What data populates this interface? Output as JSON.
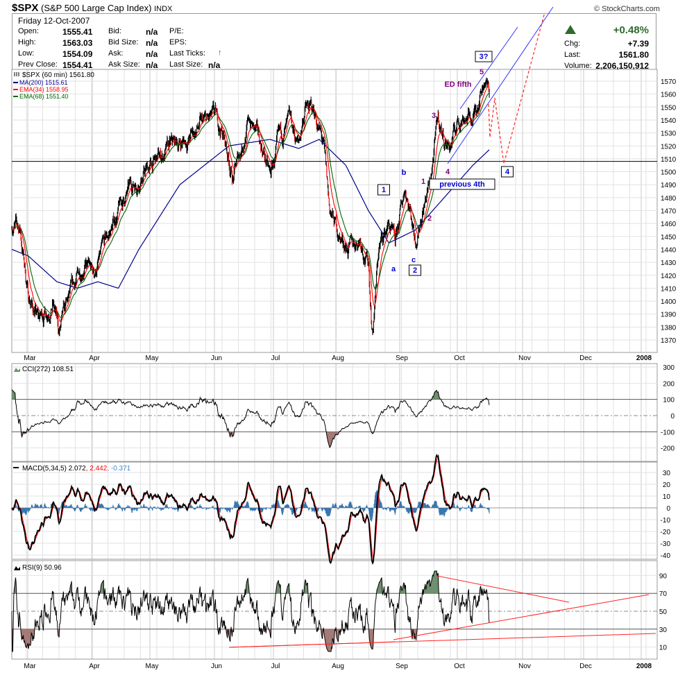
{
  "header": {
    "symbol": "$SPX",
    "name": "(S&P 500 Large Cap Index)",
    "exchange": "INDX",
    "brand": "© StockCharts.com"
  },
  "quote": {
    "date": "Friday  12-Oct-2007",
    "rows": [
      {
        "l1": "Open:",
        "v1": "1555.41",
        "l2": "Bid:",
        "v2": "n/a",
        "l3": "P/E:",
        "v3": ""
      },
      {
        "l1": "High:",
        "v1": "1563.03",
        "l2": "Bid Size:",
        "v2": "n/a",
        "l3": "EPS:",
        "v3": ""
      },
      {
        "l1": "Low:",
        "v1": "1554.09",
        "l2": "Ask:",
        "v2": "n/a",
        "l3": "Last Ticks:",
        "v3": ""
      },
      {
        "l1": "Prev Close:",
        "v1": "1554.41",
        "l2": "Ask Size:",
        "v2": "n/a",
        "l3": "Last Size:",
        "v3": "n/a"
      }
    ],
    "pct_change": "+0.48%",
    "chg_label": "Chg:",
    "chg": "+7.39",
    "last_label": "Last:",
    "last": "1561.80",
    "volume_label": "Volume:",
    "volume": "2,206,150,912"
  },
  "colors": {
    "up": "#2e6b2e",
    "ma200": "#00008b",
    "ema34": "#ff0000",
    "ema68": "#006400",
    "channel": "#3333ff",
    "projection": "#ff3333",
    "cci_pos": "#6f8f6f",
    "cci_neg": "#a57a76",
    "macd_hist": "#3a76ae",
    "label_purple": "#800080",
    "label_blue": "#0000cc"
  },
  "chart_data": [
    {
      "type": "line",
      "title": "$SPX (60 min) 1561.80",
      "legend": [
        "MA(200) 1515.61",
        "EMA(34) 1558.95",
        "EMA(68) 1551.40"
      ],
      "x_unit": "day of year 2007",
      "yticks": [
        1370,
        1380,
        1390,
        1400,
        1410,
        1420,
        1430,
        1440,
        1450,
        1460,
        1470,
        1480,
        1490,
        1500,
        1510,
        1520,
        1530,
        1540,
        1550,
        1560,
        1570
      ],
      "ylim": [
        1360,
        1580
      ],
      "xticks": [
        "Mar",
        "Apr",
        "May",
        "Jun",
        "Jul",
        "Aug",
        "Sep",
        "Oct",
        "Nov",
        "Dec",
        "2008"
      ],
      "price_close": [
        [
          52,
          1460
        ],
        [
          56,
          1455
        ],
        [
          60,
          1405
        ],
        [
          65,
          1385
        ],
        [
          72,
          1400
        ],
        [
          75,
          1375
        ],
        [
          80,
          1400
        ],
        [
          87,
          1430
        ],
        [
          92,
          1420
        ],
        [
          97,
          1440
        ],
        [
          104,
          1470
        ],
        [
          111,
          1490
        ],
        [
          117,
          1500
        ],
        [
          124,
          1510
        ],
        [
          131,
          1520
        ],
        [
          138,
          1525
        ],
        [
          144,
          1535
        ],
        [
          151,
          1540
        ],
        [
          155,
          1530
        ],
        [
          160,
          1495
        ],
        [
          165,
          1525
        ],
        [
          168,
          1540
        ],
        [
          175,
          1515
        ],
        [
          178,
          1495
        ],
        [
          182,
          1520
        ],
        [
          185,
          1530
        ],
        [
          188,
          1535
        ],
        [
          192,
          1520
        ],
        [
          195,
          1550
        ],
        [
          200,
          1545
        ],
        [
          204,
          1520
        ],
        [
          207,
          1470
        ],
        [
          212,
          1450
        ],
        [
          217,
          1440
        ],
        [
          222,
          1450
        ],
        [
          226,
          1430
        ],
        [
          228,
          1375
        ],
        [
          231,
          1440
        ],
        [
          236,
          1460
        ],
        [
          239,
          1440
        ],
        [
          244,
          1490
        ],
        [
          249,
          1450
        ],
        [
          253,
          1475
        ],
        [
          256,
          1490
        ],
        [
          260,
          1540
        ],
        [
          263,
          1525
        ],
        [
          266,
          1520
        ],
        [
          270,
          1540
        ],
        [
          273,
          1545
        ],
        [
          277,
          1540
        ],
        [
          280,
          1560
        ],
        [
          283,
          1575
        ],
        [
          285,
          1560
        ]
      ],
      "ma200": [
        [
          52,
          1440
        ],
        [
          60,
          1435
        ],
        [
          74,
          1415
        ],
        [
          84,
          1410
        ],
        [
          94,
          1415
        ],
        [
          104,
          1410
        ],
        [
          114,
          1440
        ],
        [
          134,
          1490
        ],
        [
          158,
          1520
        ],
        [
          178,
          1525
        ],
        [
          192,
          1518
        ],
        [
          202,
          1525
        ],
        [
          215,
          1505
        ],
        [
          226,
          1470
        ],
        [
          236,
          1445
        ],
        [
          249,
          1455
        ],
        [
          263,
          1480
        ],
        [
          277,
          1505
        ],
        [
          285,
          1517
        ]
      ],
      "horizontal_line": 1508,
      "annotations": [
        {
          "text": "1",
          "style": "box"
        },
        {
          "text": "a",
          "style": "blue"
        },
        {
          "text": "b",
          "style": "blue"
        },
        {
          "text": "c",
          "style": "blue"
        },
        {
          "text": "2",
          "style": "box"
        },
        {
          "text": "1",
          "style": "purple"
        },
        {
          "text": "2",
          "style": "purple"
        },
        {
          "text": "3",
          "style": "purple"
        },
        {
          "text": "4",
          "style": "purple"
        },
        {
          "text": "previous 4th",
          "style": "box"
        },
        {
          "text": "4",
          "style": "box"
        },
        {
          "text": "5",
          "style": "purple"
        },
        {
          "text": "ED fifth",
          "style": "purple"
        },
        {
          "text": "3?",
          "style": "box"
        }
      ]
    },
    {
      "type": "area",
      "title": "CCI(272) 108.51",
      "yticks": [
        300,
        200,
        100,
        0,
        -100,
        -200
      ],
      "ylim": [
        -260,
        310
      ],
      "last": 108.51
    },
    {
      "type": "line",
      "title_parts": [
        "MACD(5,34,5) 2.072",
        ", 2.442",
        ", -0.371"
      ],
      "yticks": [
        30,
        20,
        10,
        0,
        -10,
        -20,
        -30,
        -40
      ],
      "ylim": [
        -42,
        35
      ],
      "macd": 2.072,
      "signal": 2.442,
      "hist": -0.371
    },
    {
      "type": "line",
      "title": "RSI(9) 50.96",
      "yticks": [
        90,
        70,
        50,
        30,
        10
      ],
      "ylim": [
        0,
        100
      ],
      "last": 50.96
    }
  ]
}
